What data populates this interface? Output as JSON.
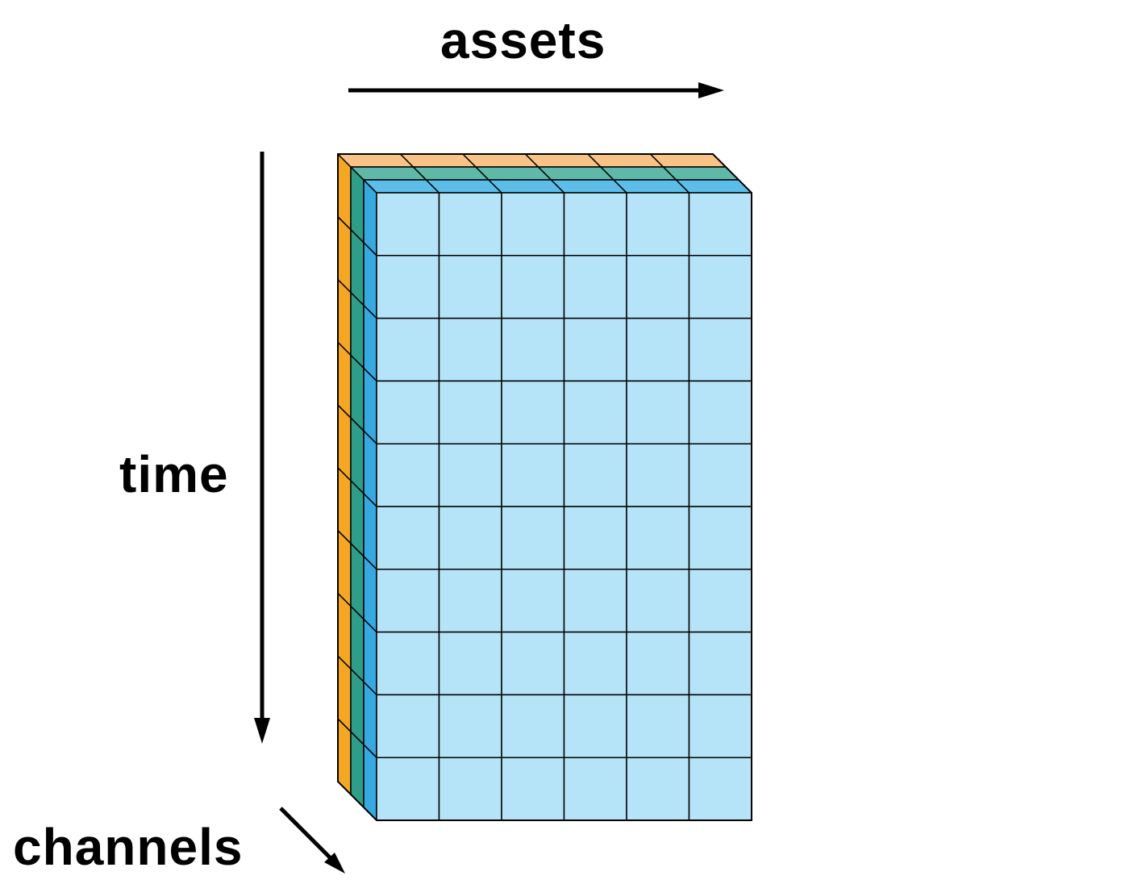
{
  "axes": {
    "assets_label": "assets",
    "time_label": "time",
    "channels_label": "channels"
  },
  "tensor": {
    "rows": 10,
    "cols": 6,
    "channels": 3
  },
  "colors": {
    "channel_back": "#f5a623",
    "channel_back_top": "#f9c286",
    "channel_middle": "#2f9e88",
    "channel_middle_top": "#5fb8a8",
    "channel_front": "#36a9e1",
    "channel_front_top": "#5cbde9",
    "front_face": "#b5e3f7",
    "stroke": "#000000"
  }
}
